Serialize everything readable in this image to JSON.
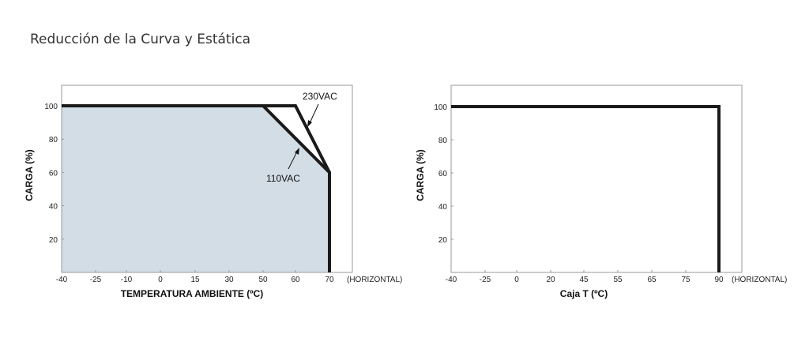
{
  "page": {
    "title": "Reducción de la Curva y Estática"
  },
  "chart_data": [
    {
      "type": "line",
      "xlabel": "TEMPERATURA AMBIENTE (ºC)",
      "ylabel": "CARGA (%)",
      "x_unit_note": "(HORIZONTAL)",
      "x_ticks": [
        -40,
        -25,
        -10,
        0,
        15,
        30,
        50,
        60,
        70
      ],
      "y_ticks": [
        20,
        40,
        60,
        80,
        100
      ],
      "ylim": [
        0,
        100
      ],
      "fill_color": "#d3dde6",
      "series": [
        {
          "name": "230VAC",
          "points": [
            [
              -40,
              100
            ],
            [
              60,
              100
            ],
            [
              70,
              60
            ],
            [
              70,
              0
            ]
          ]
        },
        {
          "name": "110VAC",
          "points": [
            [
              -40,
              100
            ],
            [
              50,
              100
            ],
            [
              70,
              60
            ],
            [
              70,
              0
            ]
          ]
        }
      ],
      "annotations": [
        "230VAC",
        "110VAC"
      ]
    },
    {
      "type": "line",
      "xlabel": "Caja T (ºC)",
      "ylabel": "CARGA (%)",
      "x_unit_note": "(HORIZONTAL)",
      "x_ticks": [
        -40,
        -25,
        0,
        20,
        45,
        55,
        65,
        75,
        90
      ],
      "y_ticks": [
        20,
        40,
        60,
        80,
        100
      ],
      "ylim": [
        0,
        100
      ],
      "series": [
        {
          "points": [
            [
              -40,
              100
            ],
            [
              90,
              100
            ],
            [
              90,
              0
            ]
          ]
        }
      ]
    }
  ]
}
